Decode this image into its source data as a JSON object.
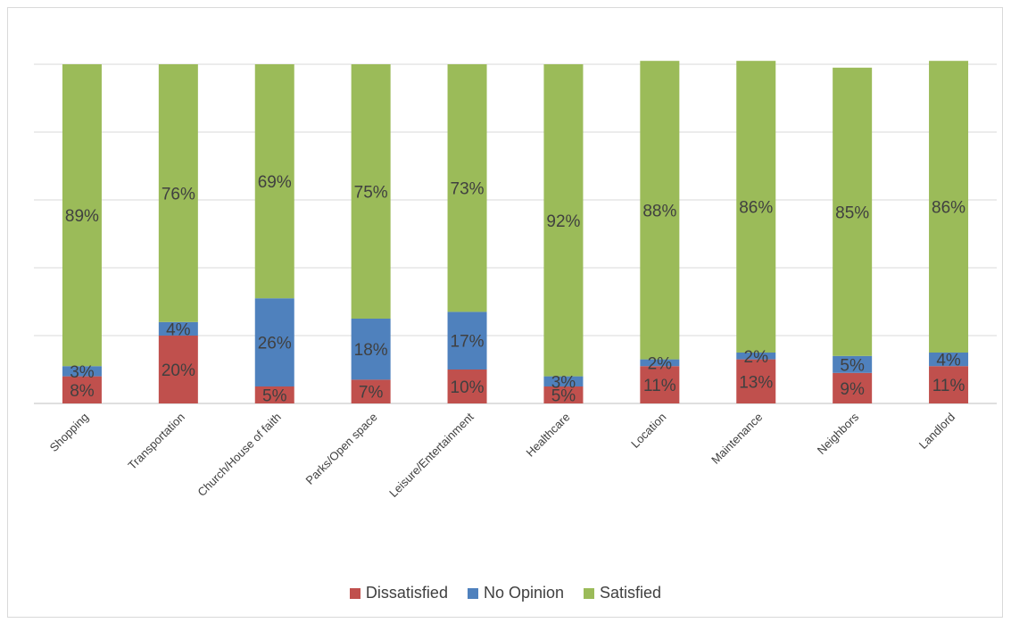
{
  "chart_data": {
    "type": "bar",
    "stacked": true,
    "categories": [
      "Shopping",
      "Transportation",
      "Church/House of faith",
      "Parks/Open space",
      "Leisure/Entertainment",
      "Healthcare",
      "Location",
      "Maintenance",
      "Neighbors",
      "Landlord"
    ],
    "series": [
      {
        "name": "Dissatisfied",
        "color": "#c0504d",
        "values": [
          8,
          20,
          5,
          7,
          10,
          5,
          11,
          13,
          9,
          11
        ],
        "labels": [
          "8%",
          "20%",
          "5%",
          "7%",
          "10%",
          "5%",
          "11%",
          "13%",
          "9%",
          "11%"
        ]
      },
      {
        "name": "No Opinion",
        "color": "#4f81bd",
        "values": [
          3,
          4,
          26,
          18,
          17,
          3,
          2,
          2,
          5,
          4
        ],
        "labels": [
          "3%",
          "4%",
          "26%",
          "18%",
          "17%",
          "3%",
          "2%",
          "2%",
          "5%",
          "4%"
        ]
      },
      {
        "name": "Satisfied",
        "color": "#9bbb59",
        "values": [
          89,
          76,
          69,
          75,
          73,
          92,
          88,
          86,
          85,
          86
        ],
        "labels": [
          "89%",
          "76%",
          "69%",
          "75%",
          "73%",
          "92%",
          "88%",
          "86%",
          "85%",
          "86%"
        ]
      }
    ],
    "ylim": [
      0,
      100
    ],
    "grid": true,
    "legend_position": "bottom"
  }
}
